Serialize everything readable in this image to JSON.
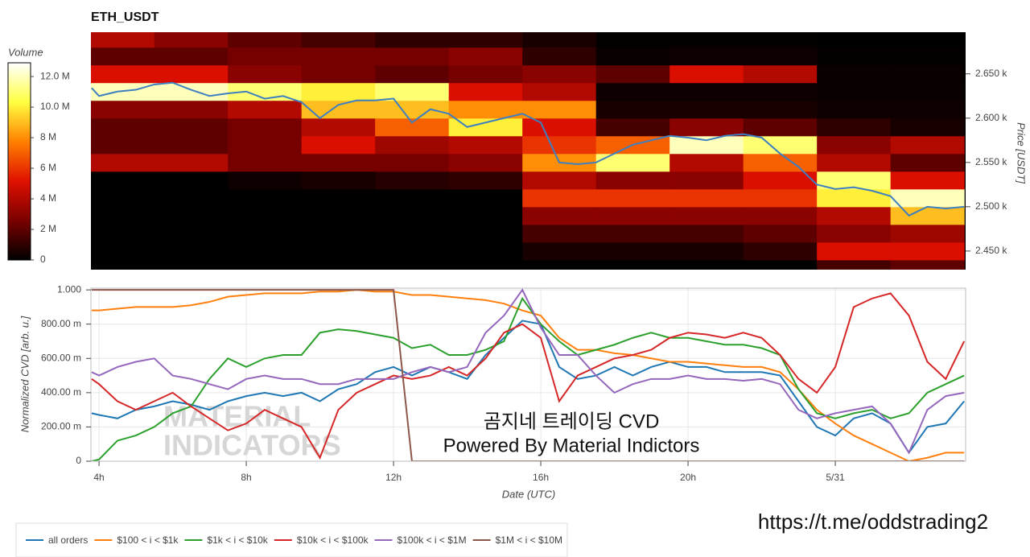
{
  "chart_data": [
    {
      "type": "heatmap",
      "title": "ETH_USDT",
      "ylabel": "Price [USDT]",
      "colorbar_label": "Volume",
      "xlim": [
        3.78,
        27.54
      ],
      "ylim": [
        2429,
        2697
      ],
      "yticks": [
        {
          "value": 2450,
          "label": "2.450 k"
        },
        {
          "value": 2500,
          "label": "2.500 k"
        },
        {
          "value": 2550,
          "label": "2.550 k"
        },
        {
          "value": 2600,
          "label": "2.600 k"
        },
        {
          "value": 2650,
          "label": "2.650 k"
        }
      ],
      "zlim": [
        0,
        12900000
      ],
      "zticks": [
        0,
        {
          "value": 2000000,
          "label": "2 M"
        },
        {
          "value": 4000000,
          "label": "4 M"
        },
        {
          "value": 6000000,
          "label": "6 M"
        },
        {
          "value": 8000000,
          "label": "8 M"
        },
        {
          "value": 10000000,
          "label": "10.0 M"
        },
        {
          "value": 12000000,
          "label": "12.0 M"
        }
      ],
      "colorscale": [
        "#000000",
        "#7a0000",
        "#e01000",
        "#ff8000",
        "#ffff40",
        "#ffffff"
      ],
      "xbins": [
        3.5,
        5.5,
        7.5,
        9.5,
        11.5,
        13.5,
        15.5,
        17.5,
        19.5,
        21.5,
        23.5,
        25.5,
        27.5
      ],
      "ybins": [
        2420,
        2440,
        2460,
        2480,
        2500,
        2520,
        2540,
        2560,
        2580,
        2600,
        2620,
        2640,
        2660,
        2680,
        2700
      ],
      "z": [
        [
          0,
          0,
          0,
          0,
          0,
          0,
          0,
          0,
          0,
          0,
          1500000,
          2000000
        ],
        [
          0,
          0,
          0,
          0,
          0,
          0,
          500000,
          500000,
          500000,
          1000000,
          5000000,
          5000000
        ],
        [
          0,
          0,
          0,
          0,
          0,
          0,
          1500000,
          1500000,
          1500000,
          2000000,
          3000000,
          3500000
        ],
        [
          0,
          0,
          0,
          0,
          0,
          0,
          3000000,
          3000000,
          3000000,
          3000000,
          4000000,
          9000000
        ],
        [
          0,
          0,
          0,
          0,
          0,
          0,
          6000000,
          6000000,
          6000000,
          6000000,
          10000000,
          12000000
        ],
        [
          0,
          0,
          300000,
          500000,
          800000,
          1000000,
          4000000,
          3000000,
          3000000,
          5000000,
          11000000,
          5000000
        ],
        [
          4000000,
          4000000,
          2500000,
          2500000,
          2500000,
          3000000,
          8000000,
          11000000,
          4000000,
          7000000,
          4000000,
          2000000
        ],
        [
          2000000,
          2000000,
          2500000,
          5000000,
          3500000,
          4000000,
          6000000,
          7000000,
          12000000,
          11000000,
          3000000,
          4000000
        ],
        [
          2000000,
          2000000,
          2500000,
          4000000,
          7000000,
          10000000,
          5000000,
          1500000,
          3000000,
          2000000,
          1000000,
          500000
        ],
        [
          3000000,
          3000000,
          4000000,
          9000000,
          9000000,
          8000000,
          8000000,
          500000,
          500000,
          500000,
          300000,
          300000
        ],
        [
          12000000,
          12000000,
          11000000,
          10000000,
          11000000,
          5000000,
          4000000,
          300000,
          300000,
          300000,
          200000,
          200000
        ],
        [
          5000000,
          5000000,
          3000000,
          2500000,
          2000000,
          2500000,
          3000000,
          2000000,
          5000000,
          4000000,
          200000,
          200000
        ],
        [
          2000000,
          2000000,
          2500000,
          2500000,
          2500000,
          3000000,
          1000000,
          200000,
          300000,
          300000,
          100000,
          100000
        ],
        [
          4000000,
          3000000,
          2000000,
          1500000,
          1000000,
          1000000,
          500000,
          100000,
          100000,
          100000,
          0,
          0
        ]
      ],
      "line": {
        "color": "#3d7fc0",
        "x": [
          3.8,
          4,
          4.5,
          5,
          5.5,
          6,
          6.5,
          7,
          7.5,
          8,
          8.5,
          9,
          9.5,
          10,
          10.5,
          11,
          11.5,
          12,
          12.5,
          13,
          13.5,
          14,
          14.5,
          15,
          15.5,
          16,
          16.5,
          17,
          17.5,
          18,
          18.5,
          19,
          19.5,
          20,
          20.5,
          21,
          21.5,
          22,
          22.5,
          23,
          23.5,
          24,
          24.5,
          25,
          25.5,
          26,
          26.5,
          27,
          27.5
        ],
        "values": [
          2634,
          2625,
          2630,
          2632,
          2638,
          2640,
          2632,
          2625,
          2628,
          2630,
          2622,
          2625,
          2618,
          2600,
          2615,
          2620,
          2620,
          2622,
          2595,
          2610,
          2605,
          2590,
          2595,
          2600,
          2605,
          2595,
          2550,
          2548,
          2550,
          2560,
          2570,
          2575,
          2580,
          2578,
          2575,
          2580,
          2582,
          2578,
          2560,
          2545,
          2525,
          2520,
          2522,
          2518,
          2512,
          2490,
          2500,
          2498,
          2500
        ]
      }
    },
    {
      "type": "line",
      "xlabel": "Date (UTC)",
      "ylabel": "Normalized CVD [arb. u.]",
      "grid": true,
      "legend": "bottom",
      "xlim": [
        3.78,
        27.54
      ],
      "ylim": [
        0,
        1.01
      ],
      "xticks": [
        {
          "value": 4,
          "label": "4h"
        },
        {
          "value": 8,
          "label": "8h"
        },
        {
          "value": 12,
          "label": "12h"
        },
        {
          "value": 16,
          "label": "16h"
        },
        {
          "value": 20,
          "label": "20h"
        },
        {
          "value": 24,
          "label": "5/31"
        }
      ],
      "yticks": [
        0,
        {
          "value": 0.2,
          "label": "200.00 m"
        },
        {
          "value": 0.4,
          "label": "400.00 m"
        },
        {
          "value": 0.6,
          "label": "600.00 m"
        },
        {
          "value": 0.8,
          "label": "800.00 m"
        },
        {
          "value": 1,
          "label": "1.000"
        }
      ],
      "x": [
        3.8,
        4,
        4.5,
        5,
        5.5,
        6,
        6.5,
        7,
        7.5,
        8,
        8.5,
        9,
        9.5,
        10,
        10.5,
        11,
        11.5,
        12,
        12.5,
        13,
        13.5,
        14,
        14.5,
        15,
        15.5,
        16,
        16.5,
        17,
        17.5,
        18,
        18.5,
        19,
        19.5,
        20,
        20.5,
        21,
        21.5,
        22,
        22.5,
        23,
        23.5,
        24,
        24.5,
        25,
        25.5,
        26,
        26.5,
        27,
        27.5
      ],
      "series": [
        {
          "name": "all orders",
          "color": "#1f77b4",
          "values": [
            0.28,
            0.27,
            0.25,
            0.3,
            0.32,
            0.35,
            0.33,
            0.3,
            0.35,
            0.38,
            0.4,
            0.38,
            0.4,
            0.35,
            0.42,
            0.45,
            0.52,
            0.55,
            0.5,
            0.55,
            0.52,
            0.48,
            0.62,
            0.72,
            0.82,
            0.8,
            0.55,
            0.48,
            0.5,
            0.55,
            0.5,
            0.55,
            0.58,
            0.55,
            0.55,
            0.52,
            0.52,
            0.52,
            0.5,
            0.35,
            0.2,
            0.15,
            0.25,
            0.28,
            0.22,
            0.05,
            0.2,
            0.22,
            0.35
          ]
        },
        {
          "name": "$100 < i < $1k",
          "color": "#ff7f0e",
          "values": [
            0.88,
            0.88,
            0.89,
            0.9,
            0.9,
            0.9,
            0.91,
            0.93,
            0.96,
            0.97,
            0.98,
            0.98,
            0.98,
            0.99,
            0.99,
            1.0,
            0.99,
            0.99,
            0.97,
            0.97,
            0.96,
            0.95,
            0.94,
            0.92,
            0.88,
            0.85,
            0.72,
            0.65,
            0.65,
            0.63,
            0.62,
            0.6,
            0.58,
            0.58,
            0.57,
            0.56,
            0.55,
            0.55,
            0.52,
            0.42,
            0.3,
            0.22,
            0.15,
            0.1,
            0.05,
            0.0,
            0.02,
            0.05,
            0.05
          ]
        },
        {
          "name": "$1k < i < $10k",
          "color": "#2ca02c",
          "values": [
            0.0,
            0.01,
            0.12,
            0.15,
            0.2,
            0.28,
            0.32,
            0.48,
            0.6,
            0.55,
            0.6,
            0.62,
            0.62,
            0.75,
            0.77,
            0.76,
            0.74,
            0.72,
            0.66,
            0.68,
            0.62,
            0.62,
            0.65,
            0.7,
            0.95,
            0.8,
            0.7,
            0.62,
            0.65,
            0.68,
            0.72,
            0.75,
            0.72,
            0.72,
            0.7,
            0.68,
            0.68,
            0.66,
            0.62,
            0.42,
            0.28,
            0.25,
            0.28,
            0.3,
            0.25,
            0.28,
            0.4,
            0.45,
            0.5
          ]
        },
        {
          "name": "$10k < i < $100k",
          "color": "#d62728",
          "values": [
            0.48,
            0.45,
            0.35,
            0.3,
            0.35,
            0.4,
            0.32,
            0.25,
            0.18,
            0.22,
            0.3,
            0.25,
            0.2,
            0.02,
            0.3,
            0.4,
            0.45,
            0.5,
            0.48,
            0.5,
            0.55,
            0.5,
            0.6,
            0.75,
            0.8,
            0.72,
            0.35,
            0.5,
            0.55,
            0.6,
            0.62,
            0.65,
            0.72,
            0.75,
            0.74,
            0.72,
            0.75,
            0.72,
            0.62,
            0.48,
            0.4,
            0.55,
            0.9,
            0.95,
            0.98,
            0.85,
            0.58,
            0.48,
            0.7
          ]
        },
        {
          "name": "$100k < i < $1M",
          "color": "#9467bd",
          "values": [
            0.52,
            0.5,
            0.55,
            0.58,
            0.6,
            0.5,
            0.48,
            0.45,
            0.42,
            0.48,
            0.5,
            0.48,
            0.48,
            0.45,
            0.45,
            0.48,
            0.48,
            0.48,
            0.52,
            0.55,
            0.52,
            0.55,
            0.75,
            0.85,
            1.0,
            0.78,
            0.62,
            0.62,
            0.5,
            0.4,
            0.45,
            0.48,
            0.48,
            0.5,
            0.48,
            0.48,
            0.47,
            0.48,
            0.45,
            0.3,
            0.25,
            0.28,
            0.3,
            0.32,
            0.22,
            0.05,
            0.3,
            0.38,
            0.4
          ]
        },
        {
          "name": "$1M < i < $10M",
          "color": "#8c564b",
          "values": [
            1,
            1,
            1,
            1,
            1,
            1,
            1,
            1,
            1,
            1,
            1,
            1,
            1,
            1,
            1,
            1,
            1,
            1,
            0,
            0,
            0,
            0,
            0,
            0,
            0,
            0,
            0,
            0,
            0,
            0,
            0,
            0,
            0,
            0,
            0,
            0,
            0,
            0,
            0,
            0,
            0,
            0,
            0,
            0,
            0,
            0,
            0,
            0,
            0
          ]
        }
      ],
      "watermark": [
        "MATERIAL",
        "INDICATORS"
      ],
      "annotations": [
        "곰지네 트레이딩 CVD",
        "Powered By Material Indictors"
      ]
    }
  ],
  "footer_link": "https://t.me/oddstrading2"
}
